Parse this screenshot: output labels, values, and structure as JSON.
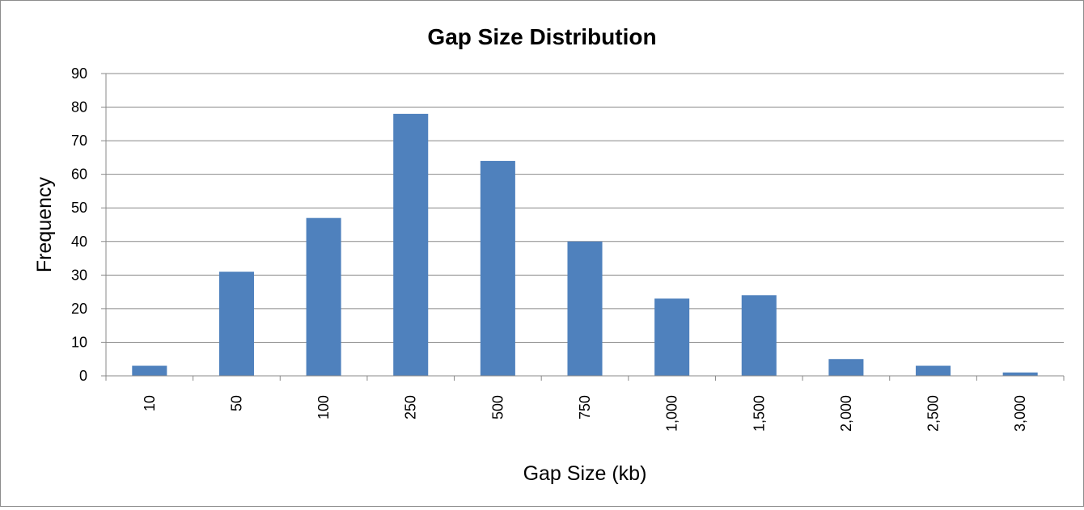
{
  "chart_data": {
    "type": "bar",
    "title": "Gap Size Distribution",
    "xlabel": "Gap Size (kb)",
    "ylabel": "Frequency",
    "categories": [
      "10",
      "50",
      "100",
      "250",
      "500",
      "750",
      "1,000",
      "1,500",
      "2,000",
      "2,500",
      "3,000"
    ],
    "values": [
      3,
      31,
      47,
      78,
      64,
      40,
      23,
      24,
      5,
      3,
      1
    ],
    "ylim": [
      0,
      90
    ],
    "yticks": [
      "0",
      "10",
      "20",
      "30",
      "40",
      "50",
      "60",
      "70",
      "80",
      "90"
    ],
    "grid": true,
    "legend": "none",
    "bar_color": "#4f81bd",
    "gridline_color": "#898989"
  }
}
